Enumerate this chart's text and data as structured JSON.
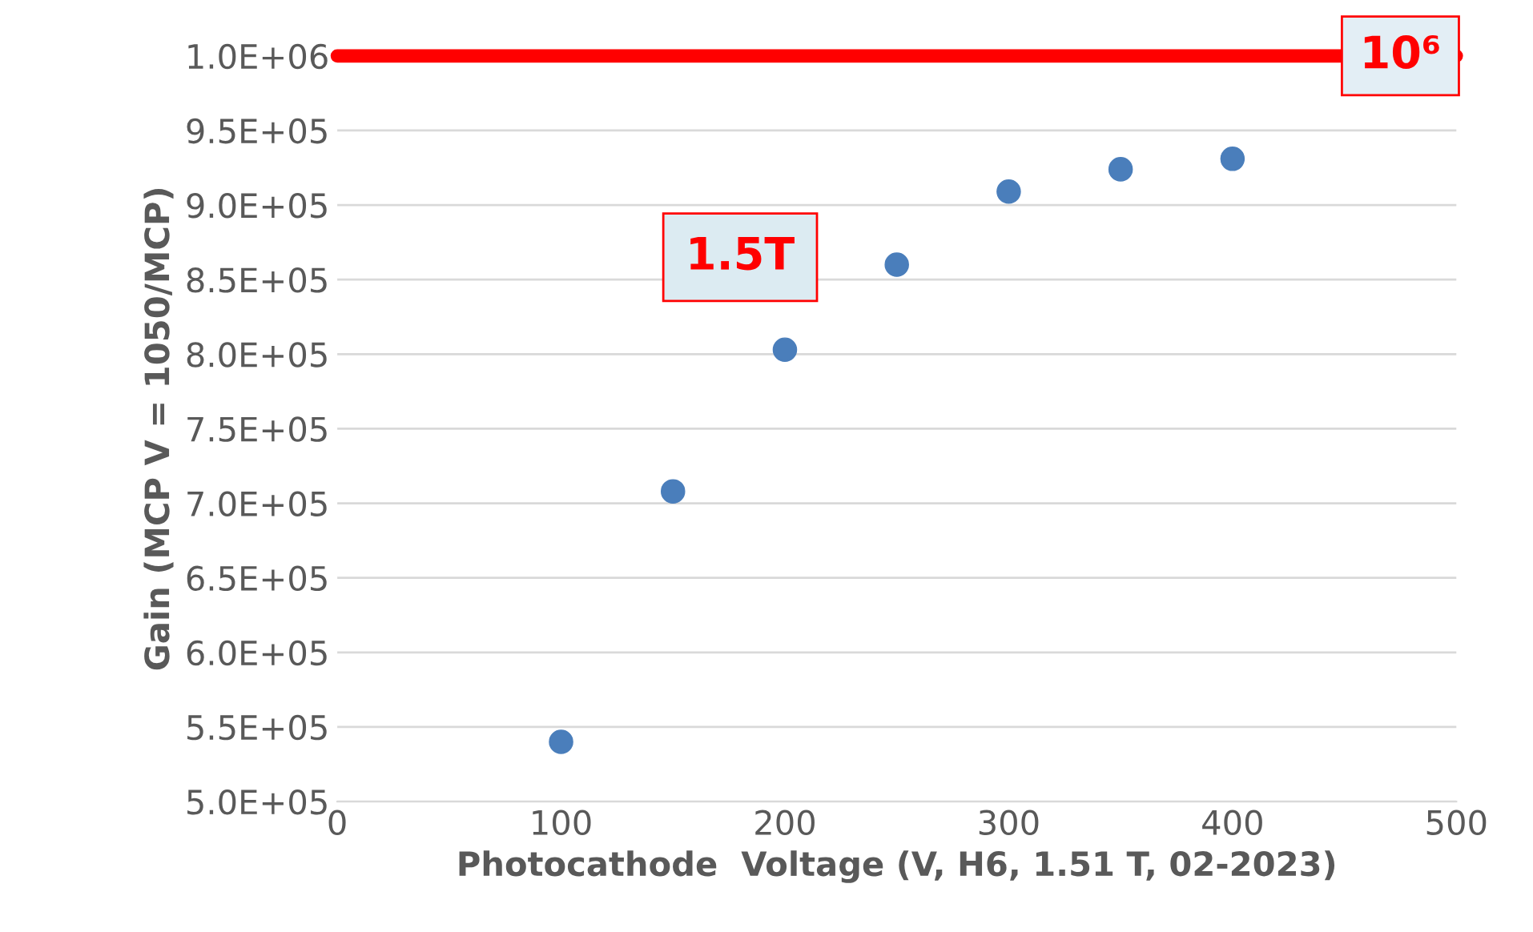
{
  "chart_data": {
    "type": "scatter",
    "xlabel": "Photocathode  Voltage (V, H6, 1.51 T, 02-2023)",
    "ylabel": "Gain (MCP V = 1050/MCP)",
    "x": [
      100,
      150,
      200,
      250,
      300,
      350,
      400
    ],
    "series": [
      {
        "color": "#4a7ebb",
        "values": [
          540000,
          708000,
          803000,
          860000,
          909000,
          924000,
          931000
        ]
      }
    ],
    "xlim": [
      0,
      500
    ],
    "xticks": [
      0,
      100,
      200,
      300,
      400,
      500
    ],
    "ylim": [
      500000,
      1000000
    ],
    "yticks": [
      {
        "value": 500000,
        "label": "5.0E+05"
      },
      {
        "value": 550000,
        "label": "5.5E+05"
      },
      {
        "value": 600000,
        "label": "6.0E+05"
      },
      {
        "value": 650000,
        "label": "6.5E+05"
      },
      {
        "value": 700000,
        "label": "7.0E+05"
      },
      {
        "value": 750000,
        "label": "7.5E+05"
      },
      {
        "value": 800000,
        "label": "8.0E+05"
      },
      {
        "value": 850000,
        "label": "8.5E+05"
      },
      {
        "value": 900000,
        "label": "9.0E+05"
      },
      {
        "value": 950000,
        "label": "9.5E+05"
      },
      {
        "value": 1000000,
        "label": "1.0E+06"
      }
    ],
    "ref_lines": [
      {
        "axis": "y",
        "value": 1000000,
        "label": "10⁶",
        "color": "#ff0000"
      }
    ],
    "annotations": [
      "1.5T"
    ],
    "grid": "y",
    "marker": "circle",
    "legend": false
  }
}
